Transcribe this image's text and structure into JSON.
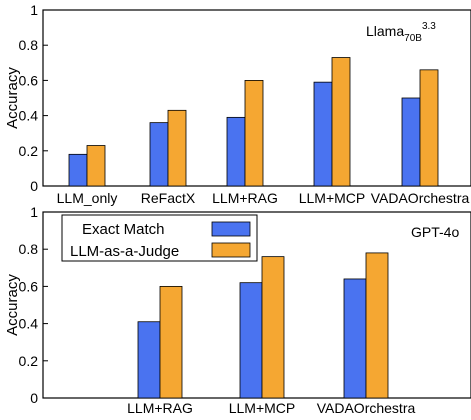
{
  "chart_data": [
    {
      "type": "bar",
      "model_label": "Llama",
      "model_sub": "70B",
      "model_sup": "3.3",
      "ylabel": "Accuracy",
      "ylim": [
        0,
        1
      ],
      "yticks": [
        "0",
        "0.2",
        "0.4",
        "0.6",
        "0.8",
        "1"
      ],
      "categories": [
        "LLM_only",
        "ReFactX",
        "LLM+RAG",
        "LLM+MCP",
        "VADAOrchestra"
      ],
      "series": [
        {
          "name": "Exact Match",
          "color": "#4a73f0",
          "values": [
            0.18,
            0.36,
            0.39,
            0.59,
            0.5
          ]
        },
        {
          "name": "LLM-as-a-Judge",
          "color": "#f5a732",
          "values": [
            0.23,
            0.43,
            0.6,
            0.73,
            0.66
          ]
        }
      ],
      "grid": false
    },
    {
      "type": "bar",
      "model_label": "GPT-4o",
      "ylabel": "Accuracy",
      "ylim": [
        0,
        1
      ],
      "yticks": [
        "0",
        "0.2",
        "0.4",
        "0.6",
        "0.8",
        "1"
      ],
      "categories": [
        "LLM+RAG",
        "LLM+MCP",
        "VADAOrchestra"
      ],
      "series": [
        {
          "name": "Exact Match",
          "color": "#4a73f0",
          "values": [
            0.41,
            0.62,
            0.64
          ]
        },
        {
          "name": "LLM-as-a-Judge",
          "color": "#f5a732",
          "values": [
            0.6,
            0.76,
            0.78
          ]
        }
      ],
      "legend": [
        "Exact Match",
        "LLM-as-a-Judge"
      ],
      "legend_placement": "top-left",
      "grid": false
    }
  ]
}
